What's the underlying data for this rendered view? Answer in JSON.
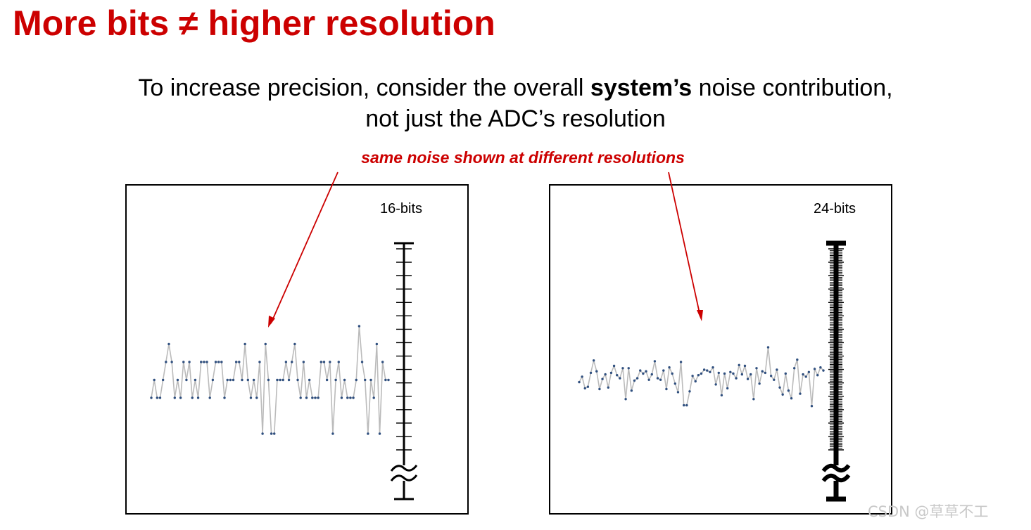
{
  "slide": {
    "title": "More bits ≠ higher resolution",
    "subtitle_line1_pre": "To increase precision, consider the overall ",
    "subtitle_line1_bold": "system’s",
    "subtitle_line1_post": " noise contribution,",
    "subtitle_line2": "not just the ADC’s resolution",
    "annotation": "same noise shown at different resolutions",
    "annotation_color": "#cc0000",
    "title_color": "#cc0000",
    "watermark": "CSDN @草草不工"
  },
  "panels": [
    {
      "label": "16-bits",
      "bits": 16,
      "trace_color": "#bbbbbb",
      "marker_color": "#2f4f7f",
      "quantized_levels": [
        0,
        1,
        0,
        0,
        1,
        2,
        3,
        2,
        0,
        1,
        0,
        2,
        1,
        2,
        0,
        1,
        0,
        2,
        2,
        2,
        0,
        1,
        2,
        2,
        2,
        0,
        1,
        1,
        1,
        2,
        2,
        1,
        3,
        1,
        0,
        1,
        0,
        2,
        -2,
        3,
        1,
        -2,
        -2,
        1,
        1,
        1,
        2,
        1,
        2,
        3,
        1,
        0,
        2,
        0,
        1,
        0,
        0,
        0,
        2,
        2,
        1,
        2,
        -2,
        1,
        2,
        0,
        1,
        0,
        0,
        0,
        1,
        4,
        2,
        1,
        -2,
        1,
        0,
        3,
        -2,
        2,
        1,
        1
      ],
      "ruler_major_ticks": 16,
      "ruler_minor_between": 0
    },
    {
      "label": "24-bits",
      "bits": 24,
      "trace_color": "#bbbbbb",
      "marker_color": "#2f4f7f",
      "noise_levels": [
        0.4,
        1.1,
        -0.4,
        -0.2,
        1.6,
        3.2,
        1.8,
        -0.5,
        0.8,
        1.4,
        -0.3,
        1.6,
        2.5,
        1.3,
        0.9,
        2.2,
        -1.8,
        2.2,
        -0.7,
        0.6,
        0.9,
        1.9,
        1.5,
        1.8,
        0.7,
        1.4,
        3.1,
        0.9,
        0.7,
        1.9,
        -0.5,
        2.3,
        1.5,
        0.2,
        -0.9,
        3,
        -2.6,
        -2.6,
        -0.8,
        1.2,
        0.5,
        1.3,
        1.5,
        2,
        1.9,
        1.7,
        2.3,
        0.1,
        1.6,
        -1.3,
        1.5,
        -0.4,
        1.7,
        1.5,
        0.9,
        2.6,
        1.4,
        2.5,
        0.8,
        1.4,
        -1.8,
        2.2,
        0.2,
        1.8,
        1.6,
        4.9,
        1.2,
        0.7,
        2,
        -0.3,
        -1.2,
        1.5,
        -0.7,
        -1.7,
        2.2,
        3.3,
        -1.1,
        1.4,
        1.1,
        1.7,
        -2.7,
        2.1,
        1.3,
        2.3,
        1.9
      ],
      "ruler_major_ticks": 16,
      "ruler_minor_between": 7
    }
  ]
}
